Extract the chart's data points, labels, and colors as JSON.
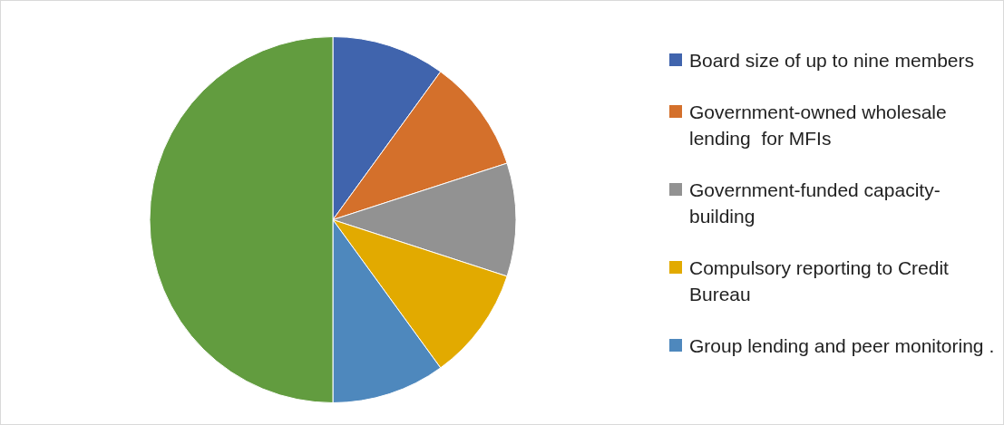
{
  "chart_data": {
    "type": "pie",
    "categories": [
      "Board size of up to nine members",
      "Government-owned wholesale lending  for MFIs",
      "Government-funded capacity-building",
      "Compulsory reporting to Credit Bureau",
      "Group lending and peer monitoring .",
      null
    ],
    "values": [
      10,
      10,
      10,
      10,
      10,
      50
    ],
    "colors": [
      "#4064ad",
      "#d4702b",
      "#929292",
      "#e2aa00",
      "#4e88bd",
      "#629c3f"
    ],
    "legend": "right"
  }
}
